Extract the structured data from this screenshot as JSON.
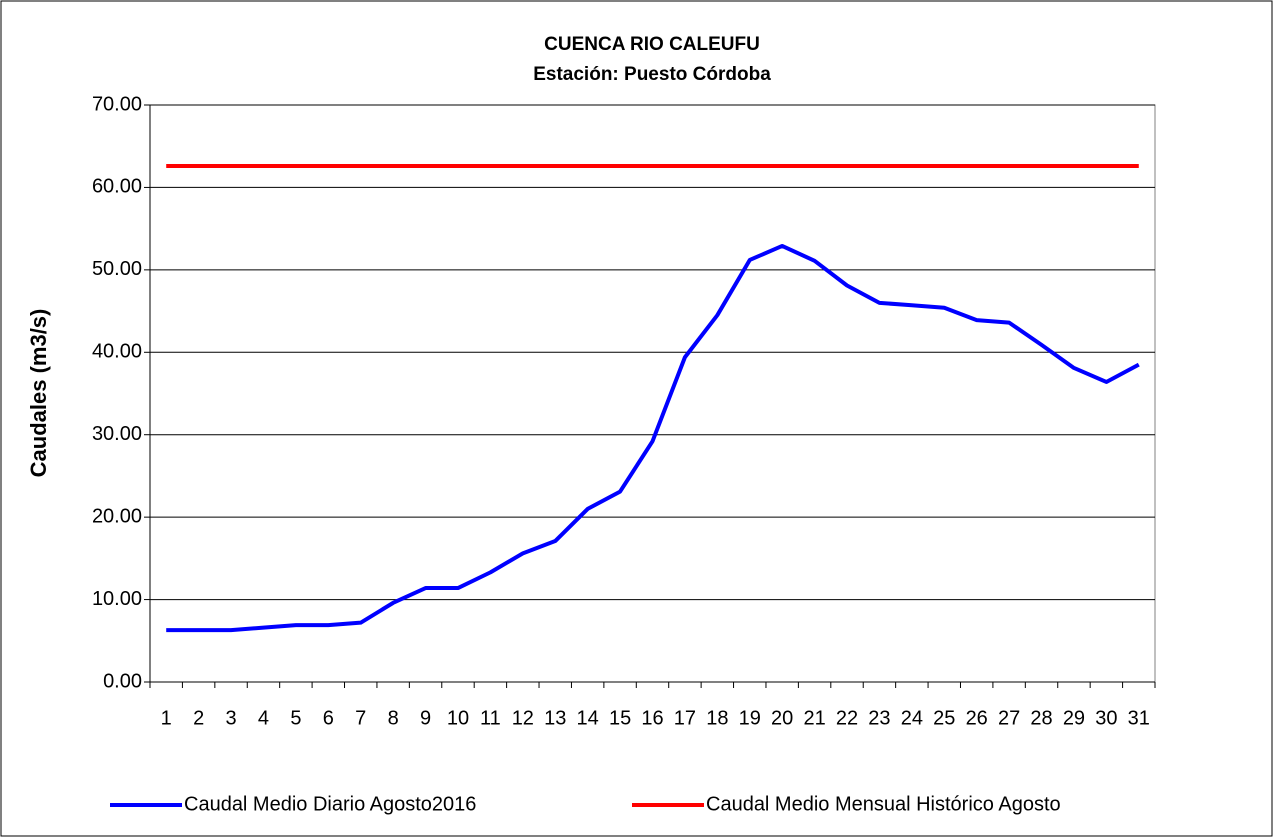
{
  "chart_data": {
    "type": "line",
    "title": "CUENCA RIO CALEUFU",
    "subtitle": "Estación: Puesto Córdoba",
    "y_label": "Caudales (m3/s)",
    "categories": [
      "1",
      "2",
      "3",
      "4",
      "5",
      "6",
      "7",
      "8",
      "9",
      "10",
      "11",
      "12",
      "13",
      "14",
      "15",
      "16",
      "17",
      "18",
      "19",
      "20",
      "21",
      "22",
      "23",
      "24",
      "25",
      "26",
      "27",
      "28",
      "29",
      "30",
      "31"
    ],
    "series": [
      {
        "name": "Caudal Medio Diario Agosto2016",
        "color": "#0000ff",
        "values": [
          6.3,
          6.3,
          6.3,
          6.6,
          6.9,
          6.9,
          7.2,
          9.6,
          11.4,
          11.4,
          13.3,
          15.6,
          17.1,
          21.0,
          23.1,
          29.2,
          39.4,
          44.5,
          51.2,
          52.9,
          51.1,
          48.1,
          46.0,
          45.7,
          45.4,
          43.9,
          43.6,
          40.9,
          38.1,
          36.4,
          38.5
        ]
      },
      {
        "name": "Caudal Medio Mensual Histórico Agosto",
        "color": "#ff0000",
        "values": [
          62.6,
          62.6,
          62.6,
          62.6,
          62.6,
          62.6,
          62.6,
          62.6,
          62.6,
          62.6,
          62.6,
          62.6,
          62.6,
          62.6,
          62.6,
          62.6,
          62.6,
          62.6,
          62.6,
          62.6,
          62.6,
          62.6,
          62.6,
          62.6,
          62.6,
          62.6,
          62.6,
          62.6,
          62.6,
          62.6,
          62.6
        ]
      }
    ],
    "ylim": [
      0,
      70
    ],
    "yticks": [
      {
        "value": 0,
        "label": "0.00"
      },
      {
        "value": 10,
        "label": "10.00"
      },
      {
        "value": 20,
        "label": "20.00"
      },
      {
        "value": 30,
        "label": "30.00"
      },
      {
        "value": 40,
        "label": "40.00"
      },
      {
        "value": 50,
        "label": "50.00"
      },
      {
        "value": 60,
        "label": "60.00"
      },
      {
        "value": 70,
        "label": "70.00"
      }
    ],
    "grid": true,
    "legend": "bottom"
  }
}
